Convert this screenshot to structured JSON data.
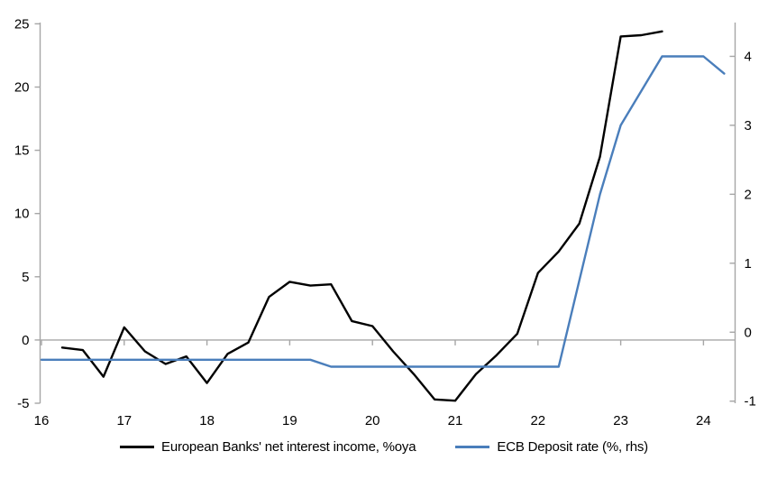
{
  "chart_data": {
    "type": "line",
    "title": "",
    "grid": "zero-line-only",
    "legend_position": "bottom",
    "x_axis": {
      "tick_labels": [
        "16",
        "17",
        "18",
        "19",
        "20",
        "21",
        "22",
        "23",
        "24"
      ],
      "tick_values": [
        2016,
        2017,
        2018,
        2019,
        2020,
        2021,
        2022,
        2023,
        2024
      ],
      "range": [
        2016,
        2024.4
      ]
    },
    "left_axis": {
      "ticks": [
        -5,
        0,
        5,
        10,
        15,
        20,
        25
      ],
      "range": [
        -5,
        25.1
      ]
    },
    "right_axis": {
      "ticks": [
        -1,
        0,
        1,
        2,
        3,
        4
      ],
      "range": [
        -1.03,
        4.49
      ]
    },
    "series": [
      {
        "name": "European Banks' net interest income, %oya",
        "axis": "left",
        "color": "#000000",
        "x": [
          2016.25,
          2016.5,
          2016.75,
          2017.0,
          2017.25,
          2017.5,
          2017.75,
          2018.0,
          2018.25,
          2018.5,
          2018.75,
          2019.0,
          2019.25,
          2019.5,
          2019.75,
          2020.0,
          2020.25,
          2020.5,
          2020.75,
          2021.0,
          2021.25,
          2021.5,
          2021.75,
          2022.0,
          2022.25,
          2022.5,
          2022.75,
          2023.0,
          2023.25,
          2023.5
        ],
        "values": [
          -0.6,
          -0.8,
          -2.9,
          1.0,
          -0.9,
          -1.9,
          -1.3,
          -3.4,
          -1.1,
          -0.2,
          3.4,
          4.6,
          4.3,
          4.4,
          1.5,
          1.1,
          -0.9,
          -2.7,
          -4.7,
          -4.8,
          -2.7,
          -1.2,
          0.5,
          5.3,
          7.0,
          9.2,
          14.5,
          24.0,
          24.1,
          24.4
        ]
      },
      {
        "name": "ECB Deposit rate (%, rhs)",
        "axis": "right",
        "color": "#4a7ebb",
        "x": [
          2016.0,
          2016.25,
          2016.5,
          2016.75,
          2017.0,
          2017.25,
          2017.5,
          2017.75,
          2018.0,
          2018.25,
          2018.5,
          2018.75,
          2019.0,
          2019.25,
          2019.5,
          2019.75,
          2020.0,
          2020.25,
          2020.5,
          2020.75,
          2021.0,
          2021.25,
          2021.5,
          2021.75,
          2022.0,
          2022.25,
          2022.5,
          2022.75,
          2023.0,
          2023.25,
          2023.5,
          2023.75,
          2024.0,
          2024.25
        ],
        "values": [
          -0.4,
          -0.4,
          -0.4,
          -0.4,
          -0.4,
          -0.4,
          -0.4,
          -0.4,
          -0.4,
          -0.4,
          -0.4,
          -0.4,
          -0.4,
          -0.4,
          -0.5,
          -0.5,
          -0.5,
          -0.5,
          -0.5,
          -0.5,
          -0.5,
          -0.5,
          -0.5,
          -0.5,
          -0.5,
          -0.5,
          0.75,
          2.0,
          3.0,
          3.5,
          4.0,
          4.0,
          4.0,
          3.75
        ]
      }
    ]
  },
  "colors": {
    "axis_gray": "#a6a6a6",
    "label_black": "#000000",
    "series1_black": "#000000",
    "series2_blue": "#4a7ebb",
    "background": "#ffffff"
  }
}
